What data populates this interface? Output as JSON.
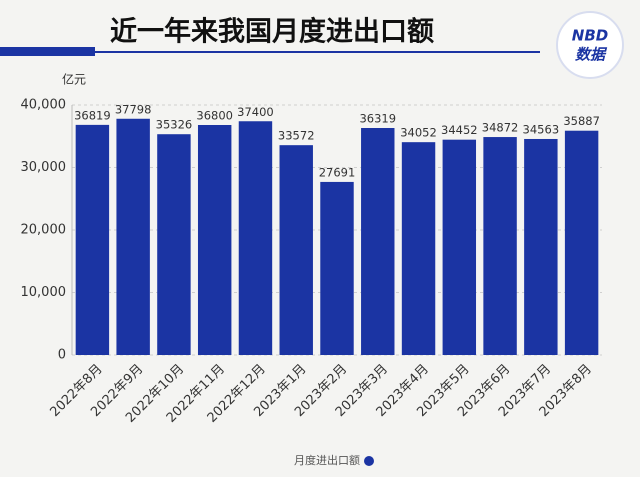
{
  "chart_data": {
    "type": "bar",
    "title": "近一年来我国月度进出口额",
    "logo": {
      "top": "NBD",
      "bottom": "数据"
    },
    "y_axis_label": "亿元",
    "categories": [
      "2022年8月",
      "2022年9月",
      "2022年10月",
      "2022年11月",
      "2022年12月",
      "2023年1月",
      "2023年2月",
      "2023年3月",
      "2023年4月",
      "2023年5月",
      "2023年6月",
      "2023年7月",
      "2023年8月"
    ],
    "series": [
      {
        "name": "月度进出口额",
        "color": "#1b34a3",
        "values": [
          36819,
          37798,
          35326,
          36800,
          37400,
          33572,
          27691,
          36319,
          34052,
          34452,
          34872,
          34563,
          35887
        ]
      }
    ],
    "ylim": [
      0,
      40000
    ],
    "yticks": [
      0,
      {
        "value": 10000,
        "label": "10,000"
      },
      {
        "value": 20000,
        "label": "20,000"
      },
      {
        "value": 30000,
        "label": "30,000"
      },
      {
        "value": 40000,
        "label": "40,000"
      }
    ],
    "grid": true,
    "legend": "bottom"
  }
}
